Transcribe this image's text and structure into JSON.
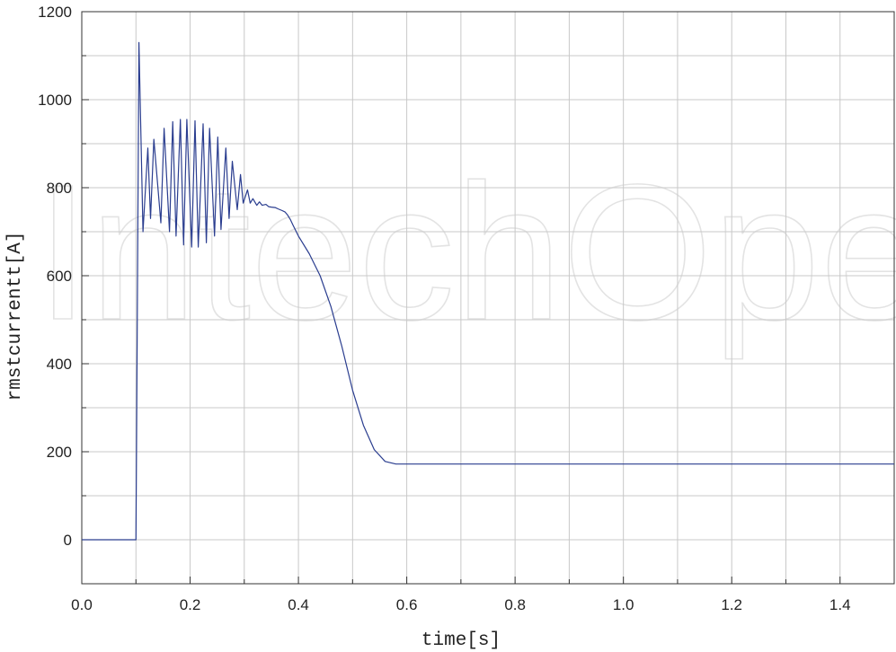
{
  "watermark": "IntechOpen",
  "chart_data": {
    "type": "line",
    "xlabel": "time[s]",
    "ylabel": "rmstcurrentt[A]",
    "xlim": [
      0,
      1.5
    ],
    "ylim": [
      -100,
      1200
    ],
    "xticks": [
      0.0,
      0.2,
      0.4,
      0.6,
      0.8,
      1.0,
      1.2,
      1.4
    ],
    "xtick_labels": [
      "0.0",
      "0.2",
      "0.4",
      "0.6",
      "0.8",
      "1.0",
      "1.2",
      "1.4"
    ],
    "yticks": [
      0,
      200,
      400,
      600,
      800,
      1000,
      1200
    ],
    "ytick_labels": [
      "0",
      "200",
      "400",
      "600",
      "800",
      "1000",
      "1200"
    ],
    "grid": true,
    "line_color": "#2a3d8f",
    "grid_color": "#c8c8c8",
    "series": [
      {
        "x": [
          0.0,
          0.1,
          0.1,
          0.1055,
          0.113,
          0.122,
          0.127,
          0.133,
          0.146,
          0.152,
          0.162,
          0.168,
          0.174,
          0.182,
          0.188,
          0.194,
          0.203,
          0.209,
          0.215,
          0.224,
          0.23,
          0.236,
          0.245,
          0.251,
          0.257,
          0.266,
          0.272,
          0.278,
          0.287,
          0.293,
          0.298,
          0.306,
          0.311,
          0.316,
          0.323,
          0.328,
          0.333,
          0.34,
          0.345,
          0.35,
          0.357,
          0.362,
          0.37,
          0.375,
          0.38,
          0.385,
          0.39,
          0.4,
          0.42,
          0.44,
          0.46,
          0.48,
          0.5,
          0.52,
          0.54,
          0.56,
          0.58,
          0.6,
          0.62,
          0.64,
          0.66,
          0.7,
          0.8,
          1.0,
          1.2,
          1.5
        ],
        "y": [
          0,
          0,
          5,
          1130,
          700,
          890,
          730,
          910,
          720,
          935,
          700,
          950,
          690,
          955,
          670,
          955,
          665,
          952,
          665,
          945,
          675,
          935,
          690,
          915,
          705,
          890,
          730,
          860,
          750,
          830,
          765,
          795,
          765,
          775,
          760,
          768,
          760,
          762,
          757,
          756,
          755,
          752,
          748,
          745,
          738,
          728,
          715,
          690,
          650,
          600,
          530,
          440,
          340,
          260,
          205,
          178,
          172,
          172,
          172,
          172,
          172,
          172,
          172,
          172,
          172,
          172
        ]
      }
    ]
  }
}
